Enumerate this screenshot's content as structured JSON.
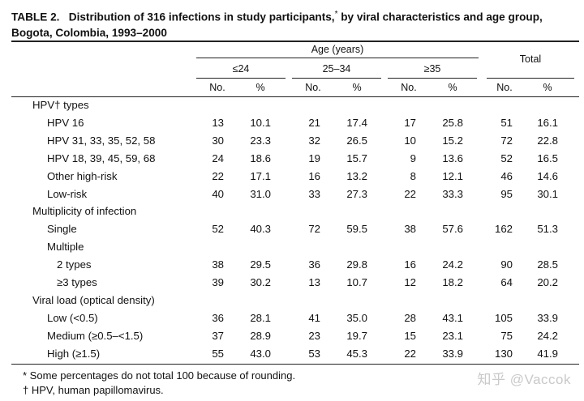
{
  "title": {
    "label": "TABLE 2.",
    "text": "Distribution of 316 infections in study participants,",
    "marker": "*",
    "text_after_marker": " by viral characteristics and age group,",
    "line2": "Bogota, Colombia, 1993–2000"
  },
  "header": {
    "age_group_label": "Age (years)",
    "total_label": "Total",
    "groups": [
      "≤24",
      "25–34",
      "≥35"
    ],
    "no_label": "No.",
    "pct_label": "%"
  },
  "rows": [
    {
      "label": "HPV† types",
      "indent": 0,
      "values": []
    },
    {
      "label": "HPV 16",
      "indent": 1,
      "values": [
        "13",
        "10.1",
        "21",
        "17.4",
        "17",
        "25.8",
        "51",
        "16.1"
      ]
    },
    {
      "label": "HPV 31, 33, 35, 52, 58",
      "indent": 1,
      "values": [
        "30",
        "23.3",
        "32",
        "26.5",
        "10",
        "15.2",
        "72",
        "22.8"
      ]
    },
    {
      "label": "HPV 18, 39, 45, 59, 68",
      "indent": 1,
      "values": [
        "24",
        "18.6",
        "19",
        "15.7",
        "9",
        "13.6",
        "52",
        "16.5"
      ]
    },
    {
      "label": "Other high-risk",
      "indent": 1,
      "values": [
        "22",
        "17.1",
        "16",
        "13.2",
        "8",
        "12.1",
        "46",
        "14.6"
      ]
    },
    {
      "label": "Low-risk",
      "indent": 1,
      "values": [
        "40",
        "31.0",
        "33",
        "27.3",
        "22",
        "33.3",
        "95",
        "30.1"
      ]
    },
    {
      "label": "Multiplicity of infection",
      "indent": 0,
      "values": []
    },
    {
      "label": "Single",
      "indent": 1,
      "values": [
        "52",
        "40.3",
        "72",
        "59.5",
        "38",
        "57.6",
        "162",
        "51.3"
      ]
    },
    {
      "label": "Multiple",
      "indent": 1,
      "values": []
    },
    {
      "label": "2 types",
      "indent": 2,
      "values": [
        "38",
        "29.5",
        "36",
        "29.8",
        "16",
        "24.2",
        "90",
        "28.5"
      ]
    },
    {
      "label": "≥3 types",
      "indent": 2,
      "values": [
        "39",
        "30.2",
        "13",
        "10.7",
        "12",
        "18.2",
        "64",
        "20.2"
      ]
    },
    {
      "label": "Viral load (optical density)",
      "indent": 0,
      "values": []
    },
    {
      "label": "Low (<0.5)",
      "indent": 1,
      "values": [
        "36",
        "28.1",
        "41",
        "35.0",
        "28",
        "43.1",
        "105",
        "33.9"
      ]
    },
    {
      "label": "Medium (≥0.5–<1.5)",
      "indent": 1,
      "values": [
        "37",
        "28.9",
        "23",
        "19.7",
        "15",
        "23.1",
        "75",
        "24.2"
      ]
    },
    {
      "label": "High (≥1.5)",
      "indent": 1,
      "values": [
        "55",
        "43.0",
        "53",
        "45.3",
        "22",
        "33.9",
        "130",
        "41.9"
      ]
    }
  ],
  "footnotes": [
    "* Some percentages do not total 100 because of rounding.",
    "† HPV, human papillomavirus."
  ],
  "watermark": "知乎 @Vaccok"
}
